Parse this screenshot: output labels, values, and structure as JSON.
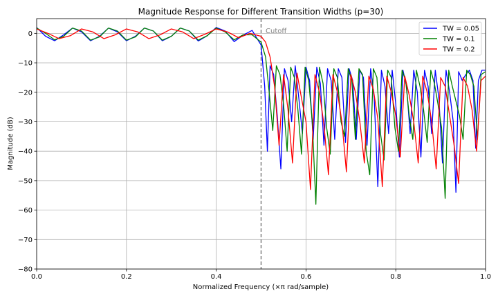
{
  "chart_data": {
    "type": "line",
    "title": "Magnitude Response for Different Transition Widths (p=30)",
    "xlabel": "Normalized Frequency (×π rad/sample)",
    "ylabel": "Magnitude (dB)",
    "xlim": [
      0.0,
      1.0
    ],
    "ylim": [
      -80,
      5
    ],
    "xticks": [
      0.0,
      0.2,
      0.4,
      0.6,
      0.8,
      1.0
    ],
    "xtick_labels": [
      "0.0",
      "0.2",
      "0.4",
      "0.6",
      "0.8",
      "1.0"
    ],
    "yticks": [
      0,
      -10,
      -20,
      -30,
      -40,
      -50,
      -60,
      -70,
      -80
    ],
    "ytick_labels": [
      "0",
      "−10",
      "−20",
      "−30",
      "−40",
      "−50",
      "−60",
      "−70",
      "−80"
    ],
    "grid": true,
    "legend_position": "top-right",
    "cutoff": {
      "x": 0.5,
      "label": "Cutoff",
      "color": "#808080",
      "style": "dashed"
    },
    "series": [
      {
        "name": "TW = 0.05",
        "color": "#0000ff",
        "x": [
          0,
          0.02,
          0.04,
          0.06,
          0.08,
          0.1,
          0.12,
          0.14,
          0.16,
          0.18,
          0.2,
          0.22,
          0.24,
          0.26,
          0.28,
          0.3,
          0.32,
          0.34,
          0.36,
          0.38,
          0.4,
          0.42,
          0.44,
          0.46,
          0.48,
          0.5,
          0.508,
          0.514,
          0.52,
          0.528,
          0.536,
          0.544,
          0.552,
          0.56,
          0.568,
          0.576,
          0.584,
          0.592,
          0.6,
          0.608,
          0.616,
          0.624,
          0.632,
          0.64,
          0.648,
          0.656,
          0.664,
          0.672,
          0.68,
          0.688,
          0.696,
          0.704,
          0.712,
          0.72,
          0.728,
          0.736,
          0.744,
          0.752,
          0.76,
          0.768,
          0.776,
          0.784,
          0.792,
          0.8,
          0.808,
          0.816,
          0.824,
          0.832,
          0.84,
          0.848,
          0.856,
          0.864,
          0.872,
          0.88,
          0.888,
          0.896,
          0.904,
          0.912,
          0.92,
          0.928,
          0.934,
          0.94,
          0.948,
          0.956,
          0.964,
          0.972,
          0.978,
          0.984,
          0.992,
          1.0
        ],
        "y": [
          2,
          -1,
          -2.5,
          -0.5,
          1.8,
          0.5,
          -2.5,
          -1,
          1.8,
          0.5,
          -2.5,
          -1,
          1.8,
          0.8,
          -2.5,
          -1,
          1.8,
          0.8,
          -2.6,
          -0.8,
          2.0,
          0.8,
          -2.8,
          -0.6,
          1.0,
          -4.0,
          -18,
          -40,
          -11,
          -14,
          -28,
          -46,
          -12,
          -16,
          -30,
          -11,
          -22,
          -34,
          -11.5,
          -16,
          -36,
          -11.5,
          -17,
          -38,
          -12,
          -16,
          -36,
          -12,
          -15,
          -37,
          -12,
          -16,
          -36,
          -12.5,
          -15,
          -38,
          -12,
          -22,
          -52,
          -12.5,
          -18,
          -34,
          -12.5,
          -24,
          -42,
          -12.5,
          -18,
          -34,
          -12.5,
          -20,
          -42,
          -12.5,
          -18,
          -34,
          -12.5,
          -22,
          -44,
          -12.5,
          -20,
          -30,
          -54,
          -13,
          -16,
          -14,
          -12.5,
          -16,
          -39,
          -16,
          -12.5,
          -12.5
        ]
      },
      {
        "name": "TW = 0.1",
        "color": "#008000",
        "x": [
          0,
          0.02,
          0.04,
          0.06,
          0.08,
          0.1,
          0.12,
          0.14,
          0.16,
          0.18,
          0.2,
          0.22,
          0.24,
          0.26,
          0.28,
          0.3,
          0.32,
          0.34,
          0.36,
          0.38,
          0.4,
          0.42,
          0.44,
          0.46,
          0.48,
          0.5,
          0.51,
          0.518,
          0.526,
          0.534,
          0.542,
          0.55,
          0.558,
          0.566,
          0.574,
          0.582,
          0.59,
          0.598,
          0.606,
          0.614,
          0.622,
          0.63,
          0.638,
          0.646,
          0.654,
          0.662,
          0.67,
          0.678,
          0.686,
          0.694,
          0.702,
          0.71,
          0.718,
          0.726,
          0.734,
          0.742,
          0.75,
          0.758,
          0.766,
          0.774,
          0.782,
          0.79,
          0.798,
          0.806,
          0.814,
          0.822,
          0.83,
          0.838,
          0.846,
          0.854,
          0.862,
          0.87,
          0.878,
          0.886,
          0.894,
          0.902,
          0.91,
          0.918,
          0.926,
          0.934,
          0.942,
          0.95,
          0.958,
          0.966,
          0.974,
          0.982,
          0.99,
          1.0
        ],
        "y": [
          1.8,
          0,
          -2.2,
          -1,
          1.8,
          0.8,
          -2.3,
          -1.2,
          1.8,
          0.8,
          -2.3,
          -1.2,
          1.8,
          0.8,
          -2.3,
          -1,
          1.8,
          0.8,
          -2.3,
          -0.8,
          1.8,
          0.5,
          -2.2,
          -0.5,
          -0.5,
          -3.0,
          -8,
          -20,
          -33,
          -11,
          -14,
          -24,
          -40,
          -11.5,
          -15,
          -26,
          -41,
          -11.5,
          -16,
          -30,
          -58,
          -11.5,
          -17,
          -32,
          -41,
          -12,
          -15,
          -30,
          -35,
          -12,
          -16,
          -36,
          -12,
          -14,
          -40,
          -48,
          -12,
          -15,
          -34,
          -43,
          -12.5,
          -15,
          -32,
          -40,
          -12.5,
          -16,
          -28,
          -36,
          -12.5,
          -18,
          -26,
          -37,
          -12.5,
          -17,
          -24,
          -32,
          -56,
          -12.5,
          -18,
          -23,
          -28,
          -36,
          -12.5,
          -14,
          -18,
          -36,
          -14,
          -13
        ]
      },
      {
        "name": "TW = 0.2",
        "color": "#ff0000",
        "x": [
          0,
          0.025,
          0.05,
          0.075,
          0.1,
          0.125,
          0.15,
          0.175,
          0.2,
          0.225,
          0.25,
          0.275,
          0.3,
          0.325,
          0.35,
          0.375,
          0.4,
          0.425,
          0.45,
          0.475,
          0.5,
          0.51,
          0.52,
          0.53,
          0.54,
          0.55,
          0.56,
          0.57,
          0.58,
          0.59,
          0.6,
          0.61,
          0.62,
          0.63,
          0.64,
          0.65,
          0.66,
          0.67,
          0.68,
          0.69,
          0.7,
          0.71,
          0.72,
          0.73,
          0.74,
          0.75,
          0.76,
          0.77,
          0.78,
          0.79,
          0.8,
          0.81,
          0.82,
          0.83,
          0.84,
          0.85,
          0.86,
          0.87,
          0.88,
          0.89,
          0.9,
          0.91,
          0.92,
          0.93,
          0.94,
          0.95,
          0.96,
          0.97,
          0.98,
          0.99,
          1.0
        ],
        "y": [
          1.5,
          0,
          -1.8,
          -0.8,
          1.5,
          0.5,
          -1.8,
          -0.5,
          1.5,
          0.5,
          -1.8,
          -0.5,
          1.5,
          0.5,
          -1.8,
          -0.3,
          1.5,
          0.5,
          -1.5,
          0,
          -1.0,
          -3,
          -8,
          -18,
          -38,
          -14,
          -26,
          -44,
          -13.5,
          -22,
          -30,
          -53,
          -14,
          -20,
          -31,
          -48,
          -14,
          -20,
          -30,
          -47,
          -14,
          -20,
          -30,
          -44,
          -14.5,
          -19,
          -29,
          -52,
          -14.5,
          -20,
          -28,
          -42,
          -14.5,
          -21,
          -30,
          -44,
          -14.5,
          -20,
          -30,
          -46,
          -15,
          -18,
          -28,
          -38,
          -51,
          -15,
          -18,
          -26,
          -40,
          -16,
          -14.5
        ]
      }
    ]
  }
}
